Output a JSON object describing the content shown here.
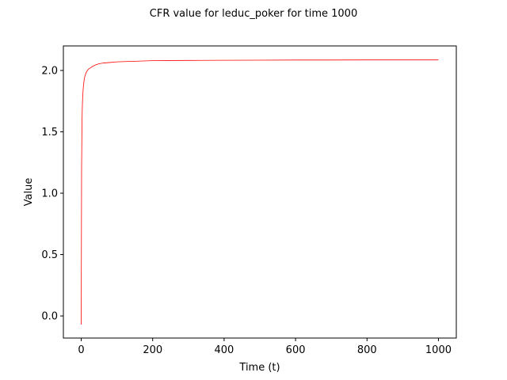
{
  "chart_data": {
    "type": "line",
    "title": "CFR value for leduc_poker for time 1000",
    "xlabel": "Time (t)",
    "ylabel": "Value",
    "xlim": [
      -50,
      1050
    ],
    "ylim": [
      -0.18,
      2.2
    ],
    "xticks": [
      0,
      200,
      400,
      600,
      800,
      1000
    ],
    "yticks": [
      0.0,
      0.5,
      1.0,
      1.5,
      2.0
    ],
    "xtick_labels": [
      "0",
      "200",
      "400",
      "600",
      "800",
      "1000"
    ],
    "ytick_labels": [
      "0.0",
      "0.5",
      "1.0",
      "1.5",
      "2.0"
    ],
    "grid": false,
    "series": [
      {
        "color": "#ff0000",
        "x": [
          0,
          1,
          2,
          3,
          4,
          5,
          6,
          8,
          10,
          12,
          15,
          20,
          25,
          30,
          40,
          50,
          60,
          80,
          100,
          150,
          200,
          250,
          300,
          400,
          500,
          600,
          700,
          800,
          900,
          1000
        ],
        "y": [
          -0.07,
          1.2,
          1.55,
          1.7,
          1.78,
          1.83,
          1.87,
          1.92,
          1.95,
          1.97,
          1.99,
          2.01,
          2.02,
          2.03,
          2.045,
          2.055,
          2.06,
          2.065,
          2.07,
          2.075,
          2.08,
          2.081,
          2.082,
          2.083,
          2.084,
          2.085,
          2.085,
          2.086,
          2.086,
          2.086
        ]
      }
    ]
  }
}
